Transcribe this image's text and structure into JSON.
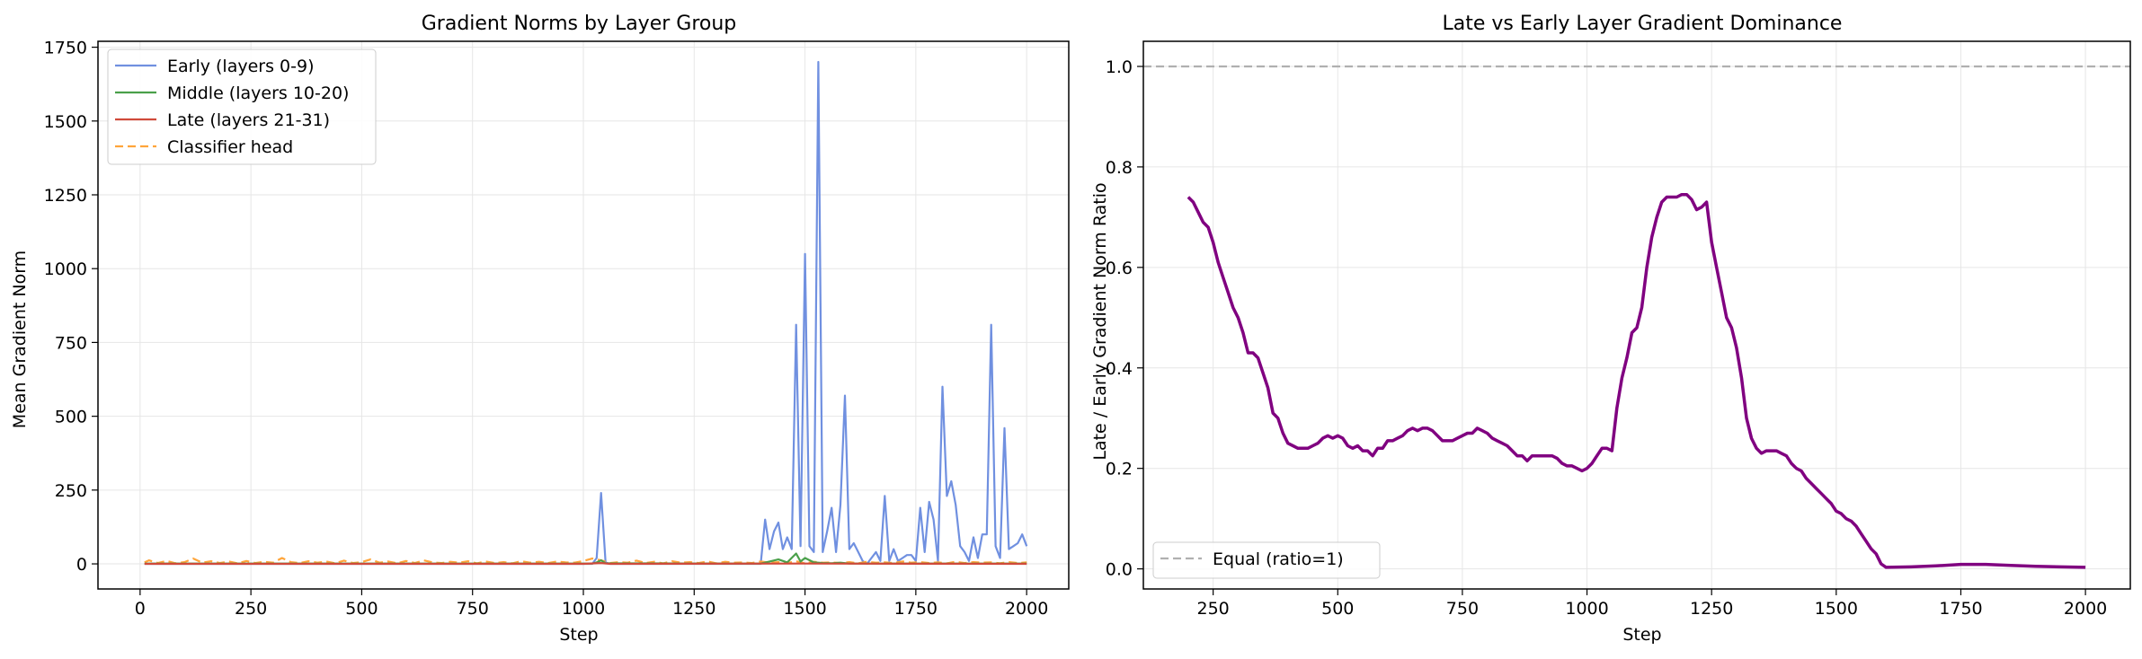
{
  "chart_data": [
    {
      "type": "line",
      "title": "Gradient Norms by Layer Group",
      "xlabel": "Step",
      "ylabel": "Mean Gradient Norm",
      "xlim": [
        -95,
        2095
      ],
      "ylim": [
        -85,
        1770
      ],
      "xticks": [
        0,
        250,
        500,
        750,
        1000,
        1250,
        1500,
        1750,
        2000
      ],
      "yticks": [
        0,
        250,
        500,
        750,
        1000,
        1250,
        1500,
        1750
      ],
      "grid": true,
      "legend_position": "top-left",
      "series": [
        {
          "name": "Early (layers 0-9)",
          "color": "#7090e0",
          "dash": "solid",
          "x": [
            10,
            1020,
            1030,
            1040,
            1050,
            1060,
            1400,
            1410,
            1420,
            1430,
            1440,
            1450,
            1460,
            1470,
            1480,
            1490,
            1500,
            1510,
            1520,
            1530,
            1540,
            1550,
            1560,
            1570,
            1580,
            1590,
            1600,
            1610,
            1620,
            1630,
            1640,
            1650,
            1660,
            1670,
            1680,
            1690,
            1700,
            1710,
            1720,
            1730,
            1740,
            1750,
            1760,
            1770,
            1780,
            1790,
            1800,
            1810,
            1820,
            1830,
            1840,
            1850,
            1860,
            1870,
            1880,
            1890,
            1900,
            1910,
            1920,
            1930,
            1940,
            1950,
            1960,
            1970,
            1980,
            1990,
            2000
          ],
          "y": [
            0,
            0,
            20,
            240,
            5,
            0,
            0,
            150,
            50,
            110,
            140,
            50,
            90,
            50,
            810,
            60,
            1050,
            60,
            40,
            1700,
            40,
            110,
            190,
            40,
            200,
            570,
            50,
            70,
            40,
            10,
            0,
            20,
            40,
            10,
            230,
            10,
            50,
            10,
            20,
            30,
            30,
            10,
            190,
            40,
            210,
            150,
            10,
            600,
            230,
            280,
            200,
            60,
            40,
            10,
            90,
            20,
            100,
            100,
            810,
            60,
            20,
            460,
            50,
            60,
            70,
            100,
            60
          ]
        },
        {
          "name": "Middle (layers 10-20)",
          "color": "#4aa04a",
          "dash": "solid",
          "x": [
            10,
            1020,
            1030,
            1040,
            1050,
            1400,
            1420,
            1440,
            1460,
            1480,
            1490,
            1500,
            1520,
            1540,
            1560,
            1580,
            1600,
            2000
          ],
          "y": [
            1,
            1,
            5,
            12,
            2,
            1,
            8,
            15,
            5,
            35,
            8,
            20,
            5,
            3,
            2,
            4,
            1,
            1
          ]
        },
        {
          "name": "Late (layers 21-31)",
          "color": "#d04a3a",
          "dash": "solid",
          "x": [
            10,
            1000,
            1040,
            1060,
            1500,
            2000
          ],
          "y": [
            0,
            0,
            3,
            0,
            1,
            0
          ]
        },
        {
          "name": "Classifier head",
          "color": "#ffa53a",
          "dash": "dashed",
          "x": [
            10,
            20,
            40,
            60,
            80,
            100,
            120,
            140,
            160,
            180,
            200,
            220,
            240,
            260,
            280,
            300,
            320,
            340,
            360,
            380,
            400,
            420,
            440,
            460,
            480,
            500,
            520,
            540,
            560,
            580,
            600,
            620,
            640,
            660,
            680,
            700,
            720,
            740,
            760,
            780,
            800,
            820,
            840,
            860,
            880,
            900,
            920,
            940,
            960,
            980,
            1000,
            1020,
            1040,
            1060,
            1080,
            1100,
            1120,
            1140,
            1160,
            1180,
            1200,
            1220,
            1240,
            1260,
            1280,
            1300,
            1320,
            1340,
            1360,
            1380,
            1400,
            1420,
            1440,
            1460,
            1480,
            1500,
            1520,
            1540,
            1560,
            1580,
            1600,
            1620,
            1640,
            1660,
            1680,
            1700,
            1720,
            1740,
            1760,
            1780,
            1800,
            1820,
            1840,
            1860,
            1880,
            1900,
            1920,
            1940,
            1960,
            1980,
            2000
          ],
          "y": [
            5,
            12,
            3,
            10,
            2,
            6,
            18,
            4,
            9,
            3,
            8,
            2,
            10,
            3,
            7,
            4,
            20,
            6,
            3,
            9,
            4,
            8,
            2,
            11,
            3,
            6,
            15,
            4,
            8,
            2,
            10,
            3,
            12,
            5,
            3,
            7,
            4,
            9,
            2,
            8,
            3,
            6,
            2,
            9,
            4,
            7,
            3,
            8,
            5,
            4,
            10,
            18,
            12,
            3,
            6,
            4,
            11,
            3,
            7,
            2,
            9,
            4,
            6,
            3,
            8,
            2,
            7,
            4,
            5,
            3,
            8,
            4,
            6,
            3,
            9,
            2,
            7,
            4,
            5,
            3,
            6,
            2,
            7,
            4,
            5,
            3,
            8,
            4,
            6,
            3,
            5,
            2,
            7,
            3,
            6,
            4,
            5,
            2,
            6,
            3,
            5
          ]
        }
      ]
    },
    {
      "type": "line",
      "title": "Late vs Early Layer Gradient Dominance",
      "xlabel": "Step",
      "ylabel": "Late / Early Gradient Norm Ratio",
      "xlim": [
        110,
        2090
      ],
      "ylim": [
        -0.04,
        1.05
      ],
      "xticks": [
        250,
        500,
        750,
        1000,
        1250,
        1500,
        1750,
        2000
      ],
      "yticks": [
        0.0,
        0.2,
        0.4,
        0.6,
        0.8,
        1.0
      ],
      "ytick_labels": [
        "0.0",
        "0.2",
        "0.4",
        "0.6",
        "0.8",
        "1.0"
      ],
      "grid": true,
      "legend_position": "bottom-left",
      "series": [
        {
          "name": "",
          "color": "#800080",
          "dash": "solid",
          "x": [
            200,
            210,
            220,
            230,
            240,
            250,
            260,
            270,
            280,
            290,
            300,
            310,
            320,
            330,
            340,
            350,
            360,
            370,
            380,
            390,
            400,
            410,
            420,
            430,
            440,
            450,
            460,
            470,
            480,
            490,
            500,
            510,
            520,
            530,
            540,
            550,
            560,
            570,
            580,
            590,
            600,
            610,
            620,
            630,
            640,
            650,
            660,
            670,
            680,
            690,
            700,
            710,
            720,
            730,
            740,
            750,
            760,
            770,
            780,
            790,
            800,
            810,
            820,
            830,
            840,
            850,
            860,
            870,
            880,
            890,
            900,
            910,
            920,
            930,
            940,
            950,
            960,
            970,
            980,
            990,
            1000,
            1010,
            1020,
            1030,
            1040,
            1050,
            1060,
            1070,
            1080,
            1090,
            1100,
            1110,
            1120,
            1130,
            1140,
            1150,
            1160,
            1170,
            1180,
            1190,
            1200,
            1210,
            1220,
            1230,
            1240,
            1250,
            1260,
            1270,
            1280,
            1290,
            1300,
            1310,
            1320,
            1330,
            1340,
            1350,
            1360,
            1370,
            1380,
            1390,
            1400,
            1410,
            1420,
            1430,
            1440,
            1450,
            1460,
            1470,
            1480,
            1490,
            1500,
            1510,
            1520,
            1530,
            1540,
            1550,
            1560,
            1570,
            1580,
            1590,
            1600,
            1650,
            1700,
            1750,
            1800,
            1850,
            1900,
            1950,
            2000
          ],
          "y": [
            0.74,
            0.73,
            0.71,
            0.69,
            0.68,
            0.65,
            0.61,
            0.58,
            0.55,
            0.52,
            0.5,
            0.47,
            0.43,
            0.43,
            0.42,
            0.39,
            0.36,
            0.31,
            0.3,
            0.27,
            0.25,
            0.245,
            0.24,
            0.24,
            0.24,
            0.245,
            0.25,
            0.26,
            0.265,
            0.26,
            0.265,
            0.26,
            0.245,
            0.24,
            0.245,
            0.235,
            0.235,
            0.225,
            0.24,
            0.24,
            0.255,
            0.255,
            0.26,
            0.265,
            0.275,
            0.28,
            0.275,
            0.28,
            0.28,
            0.275,
            0.265,
            0.255,
            0.255,
            0.255,
            0.26,
            0.265,
            0.27,
            0.27,
            0.28,
            0.275,
            0.27,
            0.26,
            0.255,
            0.25,
            0.245,
            0.235,
            0.225,
            0.225,
            0.215,
            0.225,
            0.225,
            0.225,
            0.225,
            0.225,
            0.22,
            0.21,
            0.205,
            0.205,
            0.2,
            0.195,
            0.2,
            0.21,
            0.225,
            0.24,
            0.24,
            0.235,
            0.32,
            0.38,
            0.42,
            0.47,
            0.48,
            0.52,
            0.6,
            0.66,
            0.7,
            0.73,
            0.74,
            0.74,
            0.74,
            0.745,
            0.745,
            0.735,
            0.715,
            0.72,
            0.73,
            0.65,
            0.6,
            0.55,
            0.5,
            0.48,
            0.44,
            0.38,
            0.3,
            0.26,
            0.24,
            0.23,
            0.235,
            0.235,
            0.235,
            0.23,
            0.225,
            0.21,
            0.2,
            0.195,
            0.18,
            0.17,
            0.16,
            0.15,
            0.14,
            0.13,
            0.115,
            0.11,
            0.1,
            0.095,
            0.085,
            0.07,
            0.055,
            0.04,
            0.03,
            0.01,
            0.003,
            0.004,
            0.006,
            0.009,
            0.009,
            0.007,
            0.005,
            0.004,
            0.003
          ]
        },
        {
          "name": "Equal (ratio=1)",
          "color": "#b0b0b0",
          "dash": "dashed",
          "x": [
            110,
            2090
          ],
          "y": [
            1.0,
            1.0
          ]
        }
      ]
    }
  ]
}
